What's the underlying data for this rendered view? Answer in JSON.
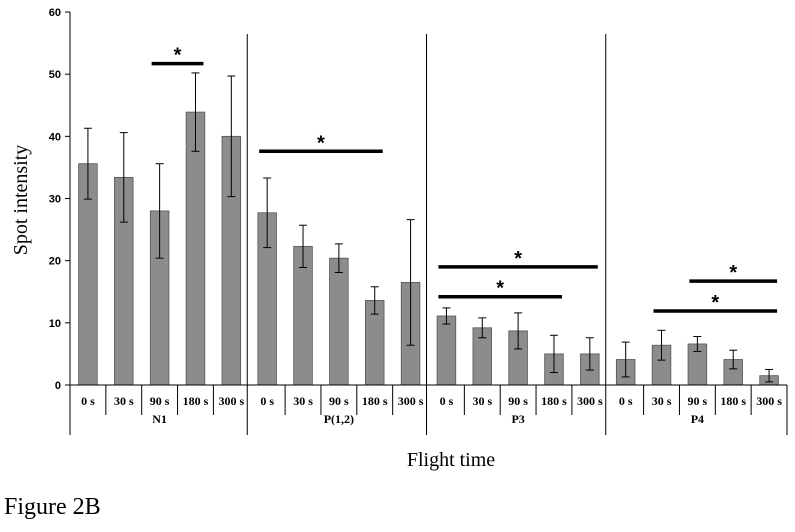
{
  "figure_label": "Figure 2B",
  "chart_data": {
    "type": "bar",
    "ylabel": "Spot intensity",
    "xlabel": "Flight time",
    "ylim": [
      0,
      60
    ],
    "yticks": [
      "0",
      "10",
      "20",
      "30",
      "40",
      "50",
      "60"
    ],
    "grid": false,
    "legend": "none",
    "bar_color": "#8c8c8c",
    "groups": [
      {
        "name": "N1",
        "categories": [
          "0 s",
          "30 s",
          "90 s",
          "180 s",
          "300 s"
        ],
        "values": [
          35.6,
          33.4,
          28.0,
          43.9,
          40.0
        ],
        "errors": [
          5.7,
          7.2,
          7.6,
          6.3,
          9.7
        ]
      },
      {
        "name": "P(1,2)",
        "categories": [
          "0 s",
          "30 s",
          "90 s",
          "180 s",
          "300 s"
        ],
        "values": [
          27.7,
          22.3,
          20.4,
          13.6,
          16.5
        ],
        "errors": [
          5.6,
          3.4,
          2.3,
          2.2,
          10.1
        ]
      },
      {
        "name": "P3",
        "categories": [
          "0 s",
          "30 s",
          "90 s",
          "180 s",
          "300 s"
        ],
        "values": [
          11.1,
          9.2,
          8.7,
          5.0,
          5.0
        ],
        "errors": [
          1.3,
          1.6,
          2.9,
          3.0,
          2.6
        ]
      },
      {
        "name": "P4",
        "categories": [
          "0 s",
          "30 s",
          "90 s",
          "180 s",
          "300 s"
        ],
        "values": [
          4.1,
          6.4,
          6.6,
          4.1,
          1.5
        ],
        "errors": [
          2.8,
          2.4,
          1.2,
          1.5,
          1.0
        ]
      }
    ],
    "significance": [
      {
        "group": 0,
        "from": 2,
        "to": 3,
        "y": 51.7,
        "label": "*"
      },
      {
        "group": 1,
        "from": 0,
        "to": 3,
        "y": 37.6,
        "label": "*"
      },
      {
        "group": 2,
        "from": 0,
        "to": 4,
        "y": 19.0,
        "label": "*"
      },
      {
        "group": 2,
        "from": 0,
        "to": 3,
        "y": 14.2,
        "label": "*"
      },
      {
        "group": 3,
        "from": 1,
        "to": 4,
        "y": 11.9,
        "label": "*"
      },
      {
        "group": 3,
        "from": 2,
        "to": 4,
        "y": 16.7,
        "label": "*"
      }
    ]
  }
}
